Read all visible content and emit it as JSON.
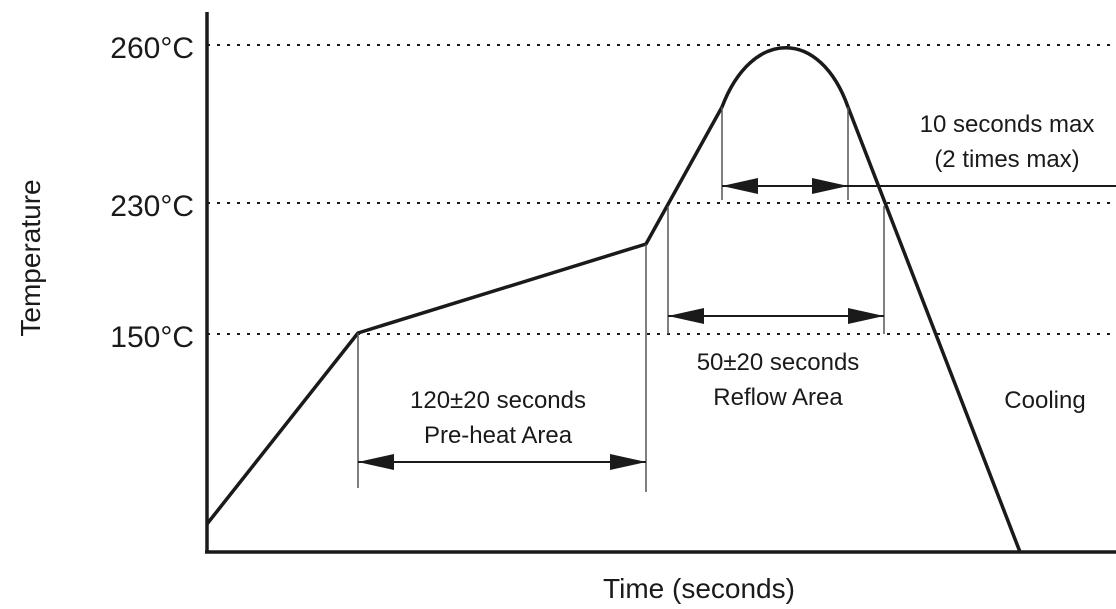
{
  "chart_data": {
    "type": "line",
    "xlabel": "Time (seconds)",
    "ylabel": "Temperature",
    "y_ticks": [
      "260°C",
      "230°C",
      "150°C"
    ],
    "annotations": {
      "preheat_time": "120±20 seconds",
      "preheat_area": "Pre-heat Area",
      "reflow_time": "50±20 seconds",
      "reflow_area": "Reflow Area",
      "peak_time": "10 seconds max",
      "peak_times": "(2 times max)",
      "cooling": "Cooling"
    }
  },
  "colors": {
    "line": "#1a1a1a",
    "background": "#ffffff"
  }
}
